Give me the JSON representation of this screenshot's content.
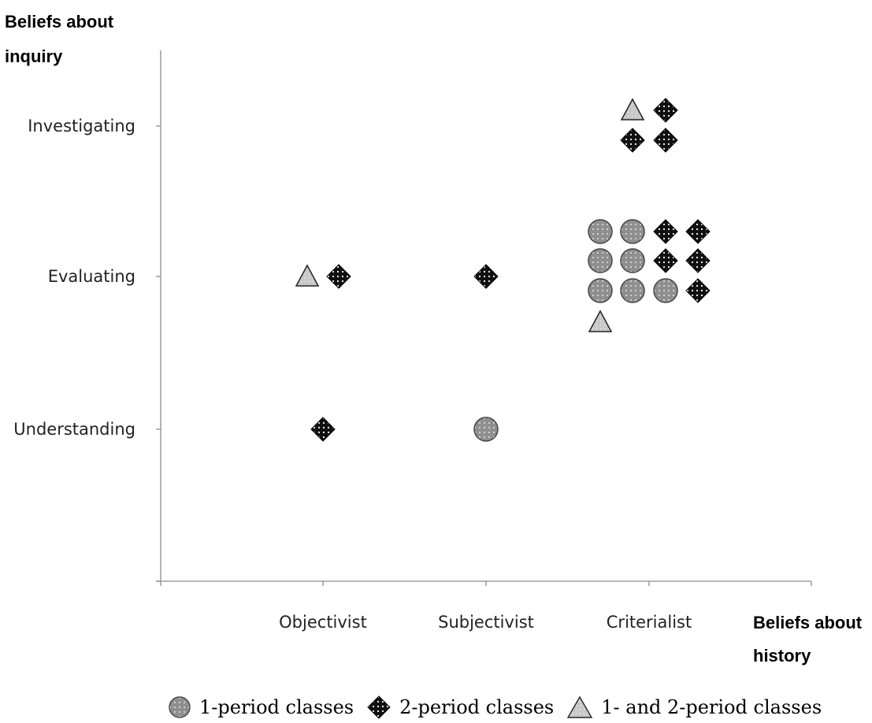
{
  "chart_data": {
    "type": "scatter",
    "ylabel": [
      "Beliefs about",
      "inquiry"
    ],
    "xlabel": [
      "Beliefs about",
      "history"
    ],
    "x_categories": [
      "Objectivist",
      "Subjectivist",
      "Criterialist"
    ],
    "y_categories": [
      "Understanding",
      "Evaluating",
      "Investigating"
    ],
    "series": [
      {
        "name": "1-period classes",
        "marker": "circle",
        "points": [
          {
            "x": "Subjectivist",
            "y": "Understanding"
          },
          {
            "x": "Criterialist",
            "y": "Evaluating"
          },
          {
            "x": "Criterialist",
            "y": "Evaluating"
          },
          {
            "x": "Criterialist",
            "y": "Evaluating"
          },
          {
            "x": "Criterialist",
            "y": "Evaluating"
          },
          {
            "x": "Criterialist",
            "y": "Evaluating"
          },
          {
            "x": "Criterialist",
            "y": "Evaluating"
          },
          {
            "x": "Criterialist",
            "y": "Evaluating"
          }
        ]
      },
      {
        "name": "2-period classes",
        "marker": "diamond",
        "points": [
          {
            "x": "Objectivist",
            "y": "Understanding"
          },
          {
            "x": "Objectivist",
            "y": "Evaluating"
          },
          {
            "x": "Subjectivist",
            "y": "Evaluating"
          },
          {
            "x": "Criterialist",
            "y": "Evaluating"
          },
          {
            "x": "Criterialist",
            "y": "Evaluating"
          },
          {
            "x": "Criterialist",
            "y": "Evaluating"
          },
          {
            "x": "Criterialist",
            "y": "Evaluating"
          },
          {
            "x": "Criterialist",
            "y": "Evaluating"
          },
          {
            "x": "Criterialist",
            "y": "Investigating"
          },
          {
            "x": "Criterialist",
            "y": "Investigating"
          },
          {
            "x": "Criterialist",
            "y": "Investigating"
          }
        ]
      },
      {
        "name": "1- and 2-period classes",
        "marker": "triangle",
        "points": [
          {
            "x": "Objectivist",
            "y": "Evaluating"
          },
          {
            "x": "Criterialist",
            "y": "Evaluating"
          },
          {
            "x": "Criterialist",
            "y": "Investigating"
          }
        ]
      }
    ],
    "grid": false,
    "legend_position": "bottom"
  },
  "colors": {
    "circle_fill": "#8f8f8f",
    "diamond_fill": "#101010",
    "triangle_fill": "#c8c8c8",
    "axis": "#8c8c8c"
  }
}
